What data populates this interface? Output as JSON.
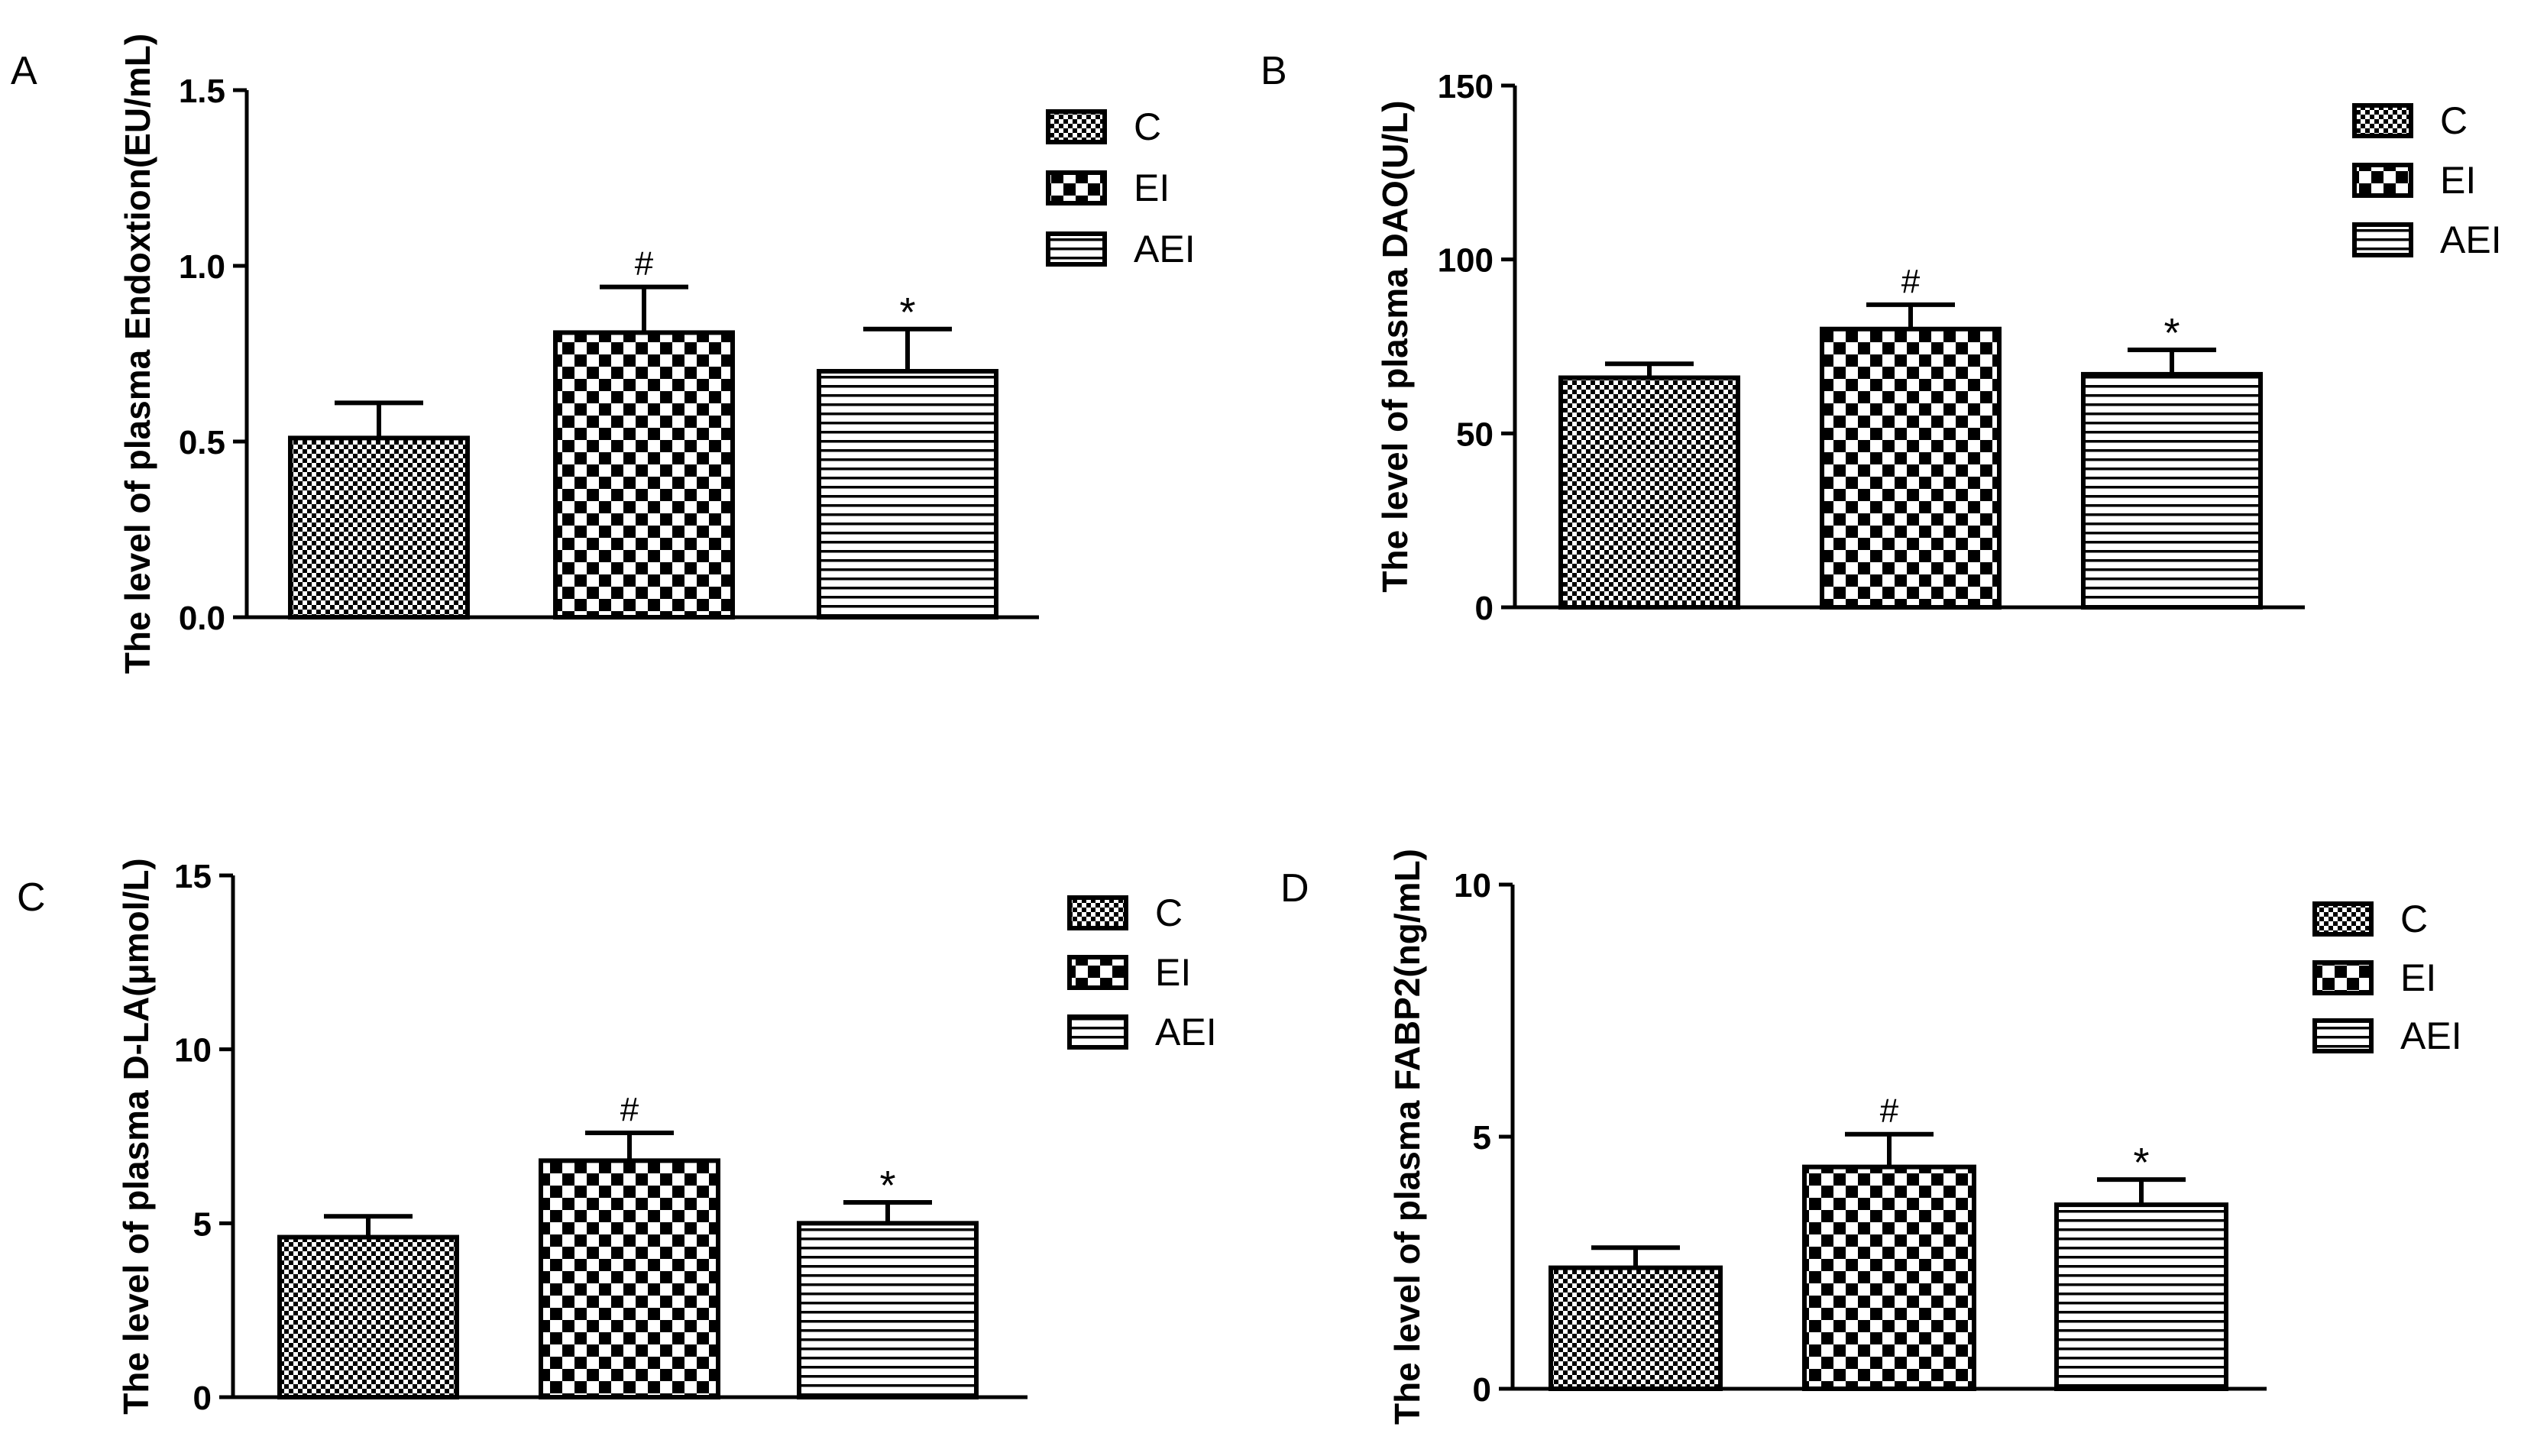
{
  "colors": {
    "ink": "#000000",
    "background": "#ffffff"
  },
  "legend_entries": [
    {
      "label": "C",
      "pattern": "fine-check"
    },
    {
      "label": "EI",
      "pattern": "coarse-check"
    },
    {
      "label": "AEI",
      "pattern": "horizontal-stripes"
    }
  ],
  "chart_data": [
    {
      "panel": "A",
      "type": "bar",
      "ylabel": "The level of plasma Endoxtion(EU/mL)",
      "ylim": [
        0,
        1.5
      ],
      "yticks": [
        0,
        0.5,
        1.0,
        1.5
      ],
      "yticklabels": [
        "0.0",
        "0.5",
        "1.0",
        "1.5"
      ],
      "categories": [
        "C",
        "EI",
        "AEI"
      ],
      "values": [
        0.51,
        0.81,
        0.7
      ],
      "errors": [
        0.1,
        0.13,
        0.12
      ],
      "annotations": [
        "",
        "#",
        "*"
      ],
      "legend": [
        "C",
        "EI",
        "AEI"
      ],
      "legend_position": "top-right"
    },
    {
      "panel": "B",
      "type": "bar",
      "ylabel": "The level of plasma DAO(U/L)",
      "ylim": [
        0,
        150
      ],
      "yticks": [
        0,
        50,
        100,
        150
      ],
      "yticklabels": [
        "0",
        "50",
        "100",
        "150"
      ],
      "categories": [
        "C",
        "EI",
        "AEI"
      ],
      "values": [
        66,
        80,
        67
      ],
      "errors": [
        4,
        7,
        7
      ],
      "annotations": [
        "",
        "#",
        "*"
      ],
      "legend": [
        "C",
        "EI",
        "AEI"
      ],
      "legend_position": "top-right"
    },
    {
      "panel": "C",
      "type": "bar",
      "ylabel": "The level of plasma D-LA(μmol/L)",
      "ylim": [
        0,
        15
      ],
      "yticks": [
        0,
        5,
        10,
        15
      ],
      "yticklabels": [
        "0",
        "5",
        "10",
        "15"
      ],
      "categories": [
        "C",
        "EI",
        "AEI"
      ],
      "values": [
        4.6,
        6.8,
        5.0
      ],
      "errors": [
        0.6,
        0.8,
        0.6
      ],
      "annotations": [
        "",
        "#",
        "*"
      ],
      "legend": [
        "C",
        "EI",
        "AEI"
      ],
      "legend_position": "top-right"
    },
    {
      "panel": "D",
      "type": "bar",
      "ylabel": "The level of plasma FABP2(ng/mL)",
      "ylim": [
        0,
        10
      ],
      "yticks": [
        0,
        5,
        10
      ],
      "yticklabels": [
        "0",
        "5",
        "10"
      ],
      "categories": [
        "C",
        "EI",
        "AEI"
      ],
      "values": [
        2.4,
        4.4,
        3.65
      ],
      "errors": [
        0.4,
        0.65,
        0.5
      ],
      "annotations": [
        "",
        "#",
        "*"
      ],
      "legend": [
        "C",
        "EI",
        "AEI"
      ],
      "legend_position": "top-right"
    }
  ]
}
